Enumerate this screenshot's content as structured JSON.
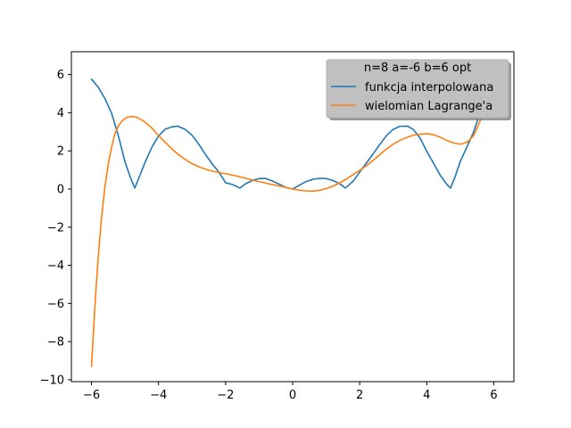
{
  "chart_data": {
    "type": "line",
    "title": "",
    "xlabel": "",
    "ylabel": "",
    "xlim": [
      -6.6,
      6.6
    ],
    "ylim": [
      -10.1,
      7.2
    ],
    "xticks": [
      -6,
      -4,
      -2,
      0,
      2,
      4,
      6
    ],
    "xtick_labels": [
      "−6",
      "−4",
      "−2",
      "0",
      "2",
      "4",
      "6"
    ],
    "yticks": [
      6,
      4,
      2,
      0,
      -2,
      -4,
      -6,
      -8,
      -10
    ],
    "ytick_labels": [
      "6",
      "4",
      "2",
      "0",
      "−2",
      "−4",
      "−6",
      "−8",
      "−10"
    ],
    "grid": false,
    "legend": {
      "title": "n=8 a=-6 b=6 opt",
      "placement": "top-right"
    },
    "series": [
      {
        "name": "funkcja interpolowana",
        "color": "#1f77b4",
        "x": [
          -6.0,
          -5.8,
          -5.6,
          -5.4,
          -5.2,
          -5.0,
          -4.85,
          -4.71,
          -4.6,
          -4.4,
          -4.2,
          -4.0,
          -3.8,
          -3.6,
          -3.43,
          -3.2,
          -3.0,
          -2.8,
          -2.6,
          -2.4,
          -2.2,
          -2.0,
          -1.8,
          -1.57,
          -1.4,
          -1.2,
          -1.0,
          -0.8,
          -0.6,
          -0.4,
          -0.2,
          0.0,
          0.2,
          0.4,
          0.6,
          0.8,
          1.0,
          1.2,
          1.4,
          1.57,
          1.8,
          2.0,
          2.2,
          2.4,
          2.6,
          2.8,
          3.0,
          3.2,
          3.43,
          3.6,
          3.8,
          4.0,
          4.2,
          4.4,
          4.6,
          4.71,
          4.85,
          5.0,
          5.2,
          5.4,
          5.6,
          5.8,
          6.0
        ],
        "y": [
          5.76,
          5.34,
          4.75,
          3.97,
          2.8,
          1.42,
          0.66,
          0.05,
          0.52,
          1.41,
          2.19,
          2.78,
          3.14,
          3.26,
          3.3,
          3.12,
          2.82,
          2.35,
          1.81,
          1.32,
          0.89,
          0.33,
          0.24,
          0.05,
          0.28,
          0.45,
          0.55,
          0.55,
          0.42,
          0.25,
          0.08,
          0.0,
          0.2,
          0.39,
          0.51,
          0.56,
          0.55,
          0.45,
          0.28,
          0.05,
          0.4,
          0.89,
          1.36,
          1.84,
          2.34,
          2.8,
          3.13,
          3.29,
          3.3,
          3.12,
          2.68,
          1.98,
          1.36,
          0.73,
          0.24,
          0.05,
          0.66,
          1.44,
          2.21,
          3.0,
          4.05,
          5.07,
          5.76
        ]
      },
      {
        "name": "wielomian Lagrange'a",
        "color": "#ff7f0e",
        "x": [
          -6.0,
          -5.9,
          -5.8,
          -5.7,
          -5.6,
          -5.5,
          -5.4,
          -5.3,
          -5.2,
          -5.1,
          -5.0,
          -4.9,
          -4.8,
          -4.7,
          -4.6,
          -4.5,
          -4.4,
          -4.2,
          -4.0,
          -3.8,
          -3.6,
          -3.4,
          -3.2,
          -3.0,
          -2.8,
          -2.6,
          -2.4,
          -2.2,
          -2.0,
          -1.8,
          -1.6,
          -1.4,
          -1.2,
          -1.0,
          -0.8,
          -0.6,
          -0.4,
          -0.2,
          0.0,
          0.2,
          0.4,
          0.6,
          0.8,
          1.0,
          1.2,
          1.4,
          1.6,
          1.8,
          2.0,
          2.2,
          2.4,
          2.6,
          2.8,
          3.0,
          3.2,
          3.4,
          3.6,
          3.8,
          4.0,
          4.2,
          4.4,
          4.6,
          4.8,
          5.0,
          5.2,
          5.4,
          5.6,
          5.7,
          5.8,
          5.9,
          6.0
        ],
        "y": [
          -9.3,
          -6.2,
          -3.6,
          -1.5,
          0.1,
          1.3,
          2.2,
          2.9,
          3.3,
          3.55,
          3.7,
          3.78,
          3.8,
          3.78,
          3.72,
          3.62,
          3.5,
          3.2,
          2.8,
          2.45,
          2.1,
          1.8,
          1.55,
          1.33,
          1.17,
          1.04,
          0.94,
          0.87,
          0.8,
          0.73,
          0.65,
          0.56,
          0.47,
          0.39,
          0.31,
          0.23,
          0.16,
          0.08,
          0.0,
          -0.06,
          -0.1,
          -0.11,
          -0.07,
          0.02,
          0.15,
          0.32,
          0.52,
          0.75,
          0.98,
          1.22,
          1.5,
          1.8,
          2.1,
          2.35,
          2.55,
          2.7,
          2.82,
          2.88,
          2.9,
          2.85,
          2.72,
          2.55,
          2.42,
          2.35,
          2.45,
          2.8,
          3.6,
          4.2,
          4.9,
          5.7,
          6.4
        ]
      }
    ]
  }
}
